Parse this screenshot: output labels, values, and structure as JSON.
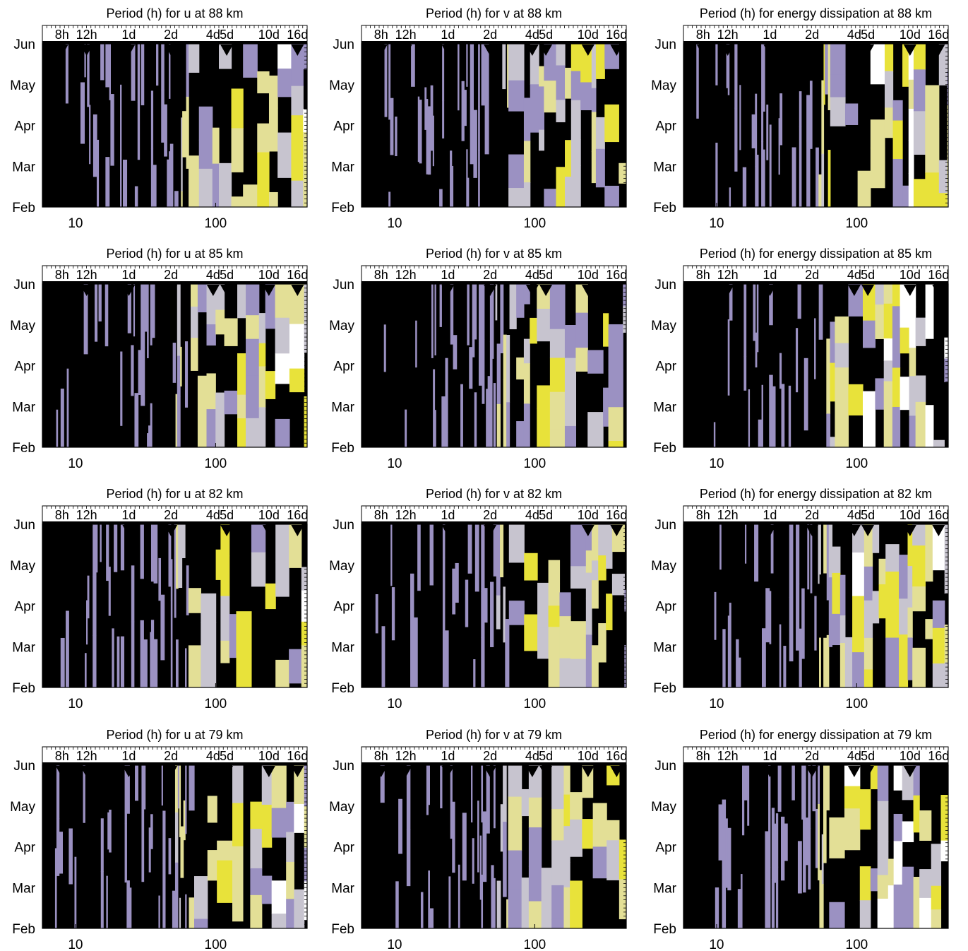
{
  "chart_data": [
    {
      "type": "heatmap",
      "title": "Period (h) for u at 88 km",
      "variable": "u",
      "altitude_km": 88,
      "seed": 11
    },
    {
      "type": "heatmap",
      "title": "Period (h) for v at 88 km",
      "variable": "v",
      "altitude_km": 88,
      "seed": 12
    },
    {
      "type": "heatmap",
      "title": "Period (h) for energy dissipation at 88 km",
      "variable": "energy dissipation",
      "altitude_km": 88,
      "seed": 13
    },
    {
      "type": "heatmap",
      "title": "Period (h) for u at 85 km",
      "variable": "u",
      "altitude_km": 85,
      "seed": 21
    },
    {
      "type": "heatmap",
      "title": "Period (h) for v at 85 km",
      "variable": "v",
      "altitude_km": 85,
      "seed": 22
    },
    {
      "type": "heatmap",
      "title": "Period (h) for energy dissipation at 85 km",
      "variable": "energy dissipation",
      "altitude_km": 85,
      "seed": 23
    },
    {
      "type": "heatmap",
      "title": "Period (h) for u at 82 km",
      "variable": "u",
      "altitude_km": 82,
      "seed": 31
    },
    {
      "type": "heatmap",
      "title": "Period (h) for v at 82 km",
      "variable": "v",
      "altitude_km": 82,
      "seed": 32
    },
    {
      "type": "heatmap",
      "title": "Period (h) for energy dissipation at 82 km",
      "variable": "energy dissipation",
      "altitude_km": 82,
      "seed": 33
    },
    {
      "type": "heatmap",
      "title": "Period (h) for u at 79 km",
      "variable": "u",
      "altitude_km": 79,
      "seed": 41
    },
    {
      "type": "heatmap",
      "title": "Period (h) for v at 79 km",
      "variable": "v",
      "altitude_km": 79,
      "seed": 42
    },
    {
      "type": "heatmap",
      "title": "Period (h) for energy dissipation at 79 km",
      "variable": "energy dissipation",
      "altitude_km": 79,
      "seed": 43
    }
  ],
  "shared": {
    "x_scale": "log",
    "xlim_hours": [
      5.8,
      450
    ],
    "x_ticks_bottom": [
      {
        "value": 10,
        "label": "10"
      },
      {
        "value": 100,
        "label": "100"
      }
    ],
    "x_ticks_top": [
      {
        "value": 8,
        "label": "8h"
      },
      {
        "value": 12,
        "label": "12h"
      },
      {
        "value": 24,
        "label": "1d"
      },
      {
        "value": 48,
        "label": "2d"
      },
      {
        "value": 96,
        "label": "4d"
      },
      {
        "value": 120,
        "label": "5d"
      },
      {
        "value": 240,
        "label": "10d"
      },
      {
        "value": 384,
        "label": "16d"
      }
    ],
    "y_ticks": [
      "Feb",
      "Mar",
      "Apr",
      "May",
      "Jun"
    ],
    "marker_periods_hours": [
      8,
      12,
      24,
      48,
      96,
      120,
      240,
      384
    ],
    "colormap": [
      "#000000",
      "#9b91c2",
      "#c7c4cf",
      "#e3df96",
      "#e8e23a",
      "#ffffff"
    ]
  }
}
